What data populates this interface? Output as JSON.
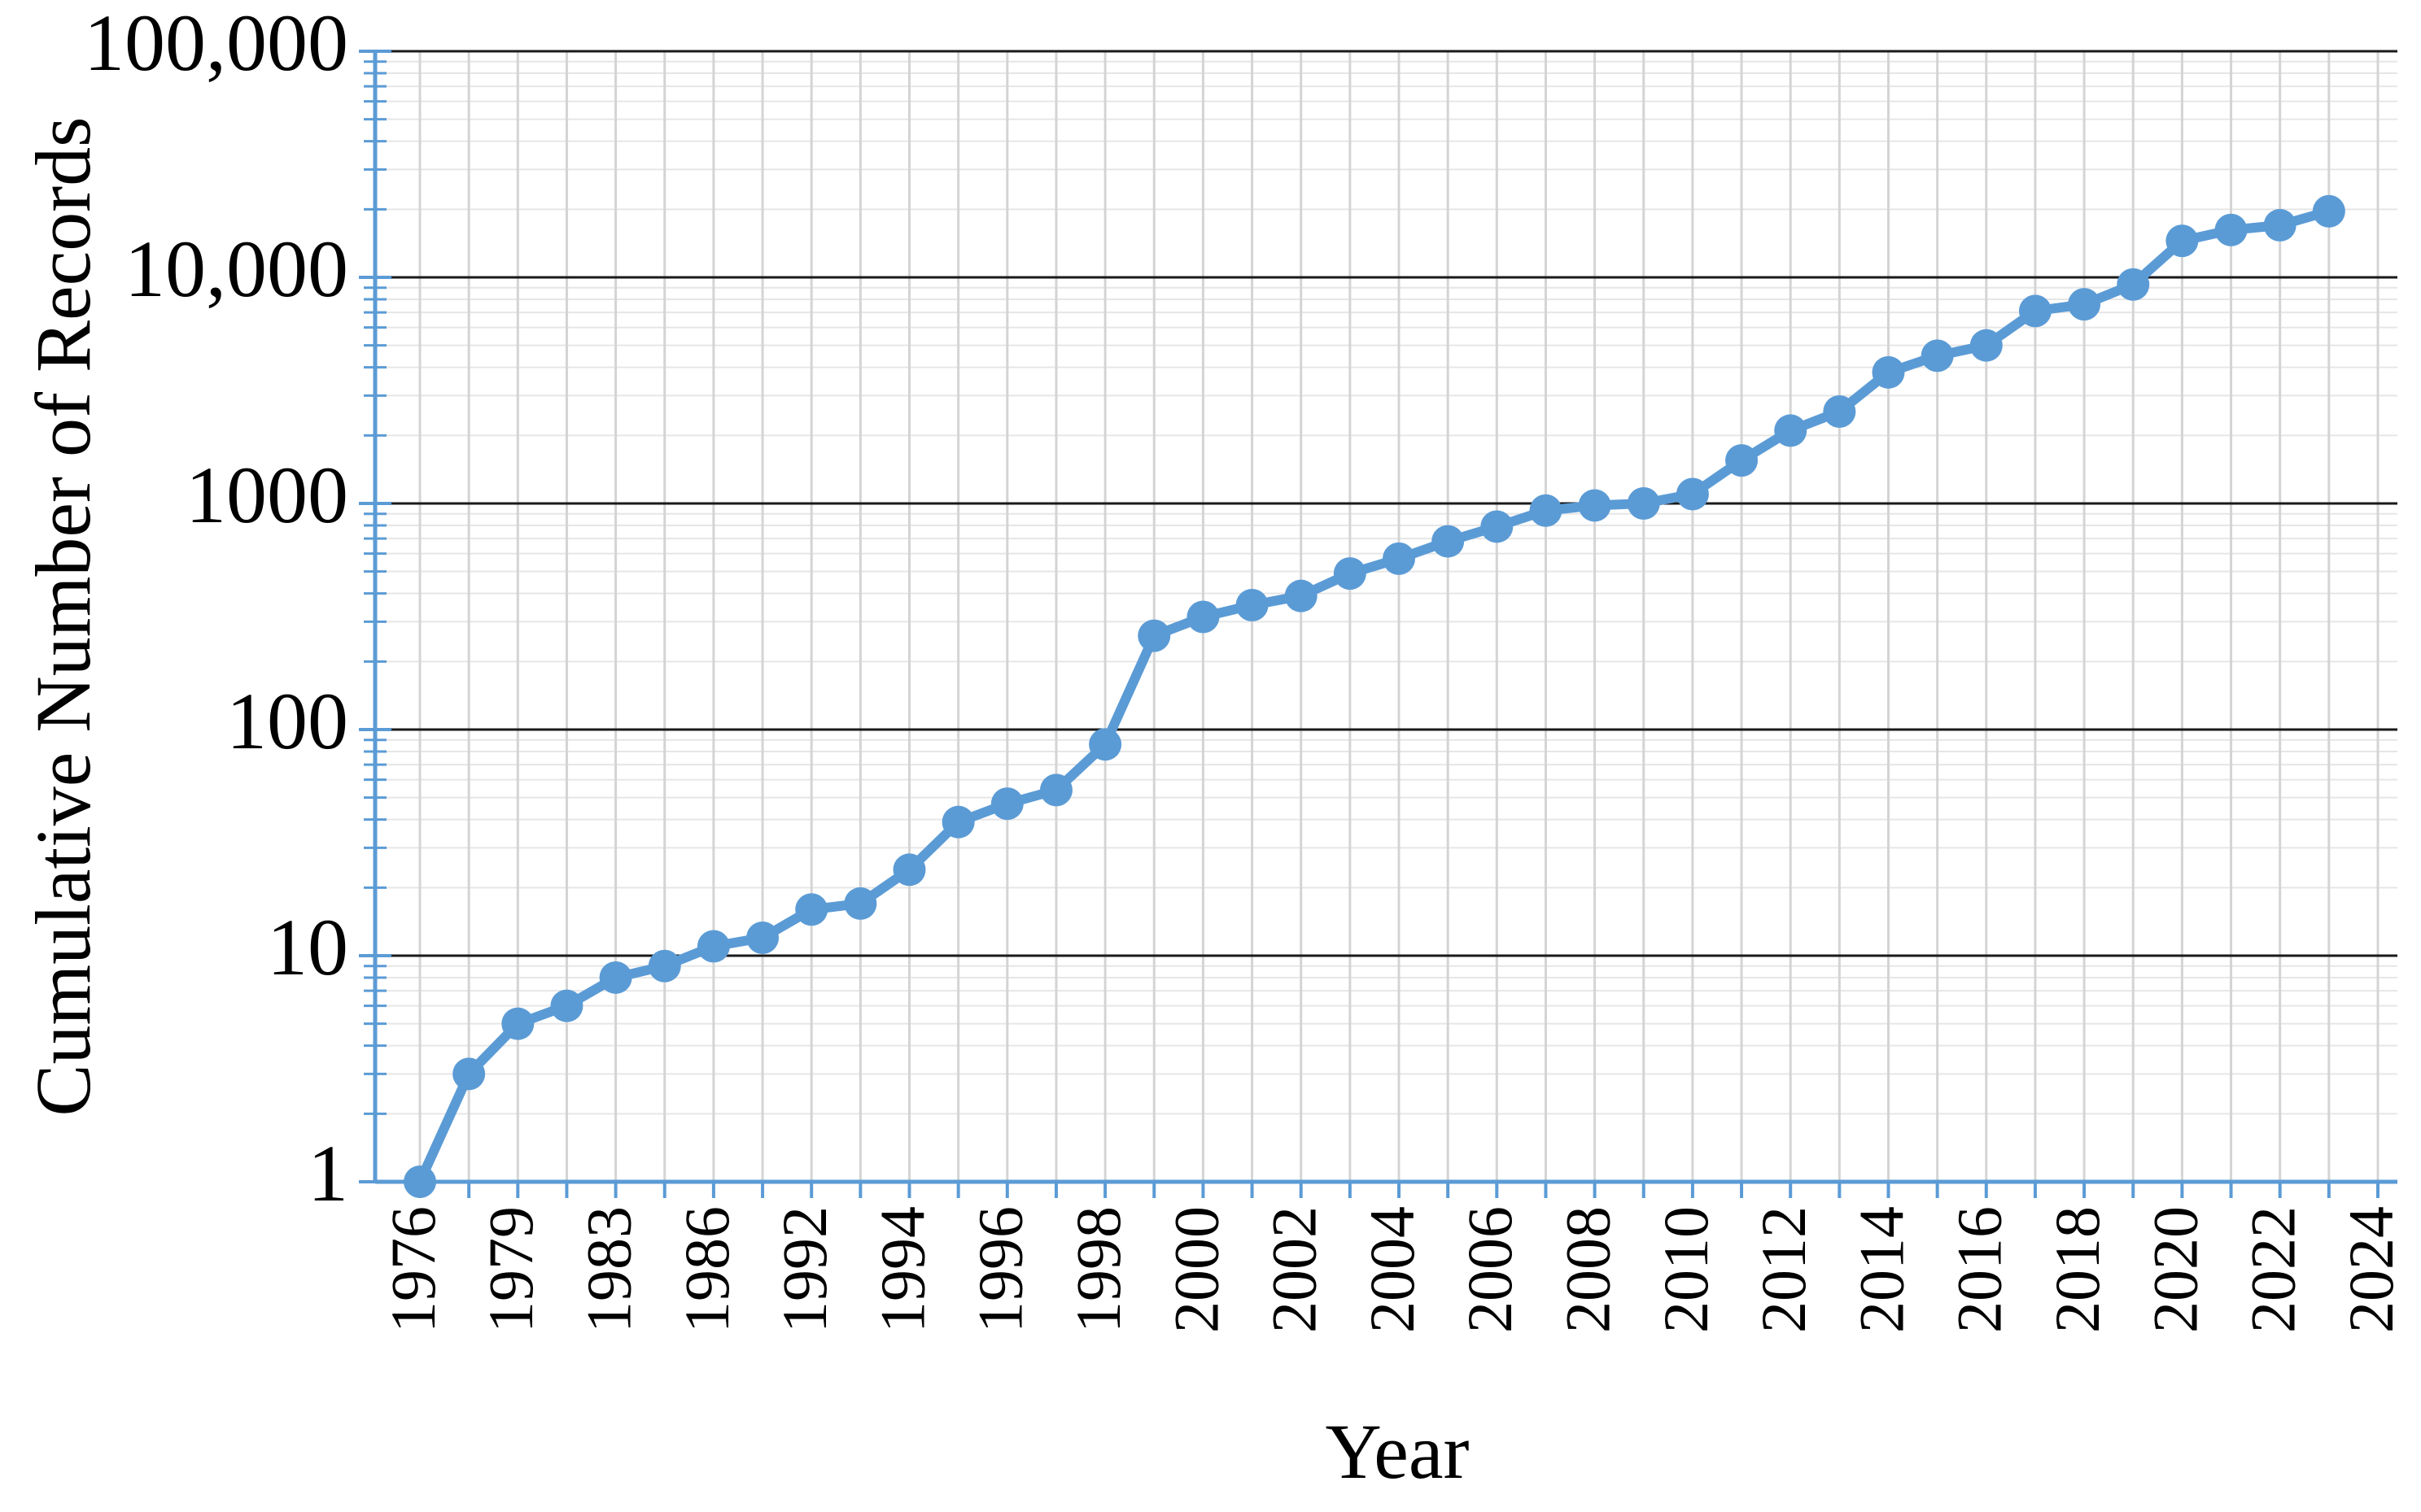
{
  "chart_data": {
    "type": "line",
    "x_label": "Year",
    "y_label": "Cumulative Number of Records",
    "categories": [
      "1976",
      null,
      "1979",
      null,
      "1983",
      null,
      "1986",
      null,
      "1992",
      null,
      "1994",
      null,
      "1996",
      null,
      "1998",
      null,
      "2000",
      null,
      "2002",
      null,
      "2004",
      null,
      "2006",
      null,
      "2008",
      null,
      "2010",
      null,
      "2012",
      null,
      "2014",
      null,
      "2016",
      null,
      "2018",
      null,
      "2020",
      null,
      "2022",
      null,
      "2024"
    ],
    "values": [
      1,
      3,
      5,
      6,
      8,
      9,
      11,
      12,
      16,
      17,
      24,
      39,
      47,
      54,
      86,
      260,
      315,
      355,
      390,
      490,
      570,
      680,
      790,
      930,
      980,
      1000,
      1100,
      1550,
      2100,
      2550,
      3800,
      4500,
      5000,
      7100,
      7600,
      9300,
      14500,
      16200,
      17000,
      19600,
      null
    ],
    "color": "#5b9bd5",
    "log_y": true,
    "ylim": [
      1,
      100000
    ],
    "yticks": [
      1,
      10,
      100,
      1000,
      {
        "value": 10000,
        "label": "10,000"
      },
      {
        "value": 100000,
        "label": "100,000"
      }
    ],
    "grid": true,
    "minor_grid": true
  }
}
